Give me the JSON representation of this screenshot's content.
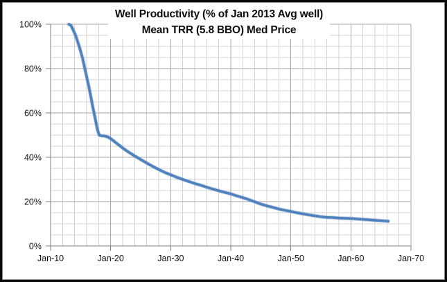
{
  "chart": {
    "title_line1": "Well Productivity (% of Jan 2013 Avg well)",
    "title_line2": "Mean TRR (5.8 BBO) Med Price"
  },
  "chart_data": {
    "type": "line",
    "title": "Well Productivity (% of Jan 2013 Avg well) Mean TRR (5.8 BBO) Med Price",
    "xlabel": "",
    "ylabel": "",
    "x_range": [
      2010,
      2070
    ],
    "ylim": [
      0,
      100
    ],
    "x_tick_values": [
      2010,
      2020,
      2030,
      2040,
      2050,
      2060,
      2070
    ],
    "x_tick_labels": [
      "Jan-10",
      "Jan-20",
      "Jan-30",
      "Jan-40",
      "Jan-50",
      "Jan-60",
      "Jan-70"
    ],
    "y_tick_values": [
      0,
      20,
      40,
      60,
      80,
      100
    ],
    "y_tick_labels": [
      "0%",
      "20%",
      "40%",
      "60%",
      "80%",
      "100%"
    ],
    "x_minor_step_years": 2,
    "y_minor_step_pct": 5,
    "grid": "major and minor gridlines on both axes",
    "legend": "none",
    "colors": {
      "line": "#4F81BD",
      "minor_grid": "#d2d2d2",
      "major_grid": "#a6a6a6",
      "axis": "#808080",
      "border": "#0a0a0a",
      "background": "#ffffff"
    },
    "series": [
      {
        "name": "Well productivity, % of Jan 2013 average well",
        "points": [
          [
            2013.05,
            100
          ],
          [
            2013.4,
            99.4
          ],
          [
            2013.8,
            97.2
          ],
          [
            2014.15,
            95.0
          ],
          [
            2014.77,
            90.0
          ],
          [
            2015.3,
            85.0
          ],
          [
            2015.7,
            80.0
          ],
          [
            2016.4,
            71.5
          ],
          [
            2017.0,
            63.0
          ],
          [
            2017.5,
            56.5
          ],
          [
            2017.8,
            52.5
          ],
          [
            2018.1,
            50.0
          ],
          [
            2018.5,
            49.7
          ],
          [
            2019.0,
            49.6
          ],
          [
            2019.5,
            49.2
          ],
          [
            2020.0,
            48.4
          ],
          [
            2021.0,
            46.3
          ],
          [
            2022.0,
            44.2
          ],
          [
            2023.0,
            42.3
          ],
          [
            2024.0,
            40.6
          ],
          [
            2025.0,
            39.0
          ],
          [
            2026.0,
            37.4
          ],
          [
            2027.0,
            35.9
          ],
          [
            2028.0,
            34.5
          ],
          [
            2029.0,
            33.2
          ],
          [
            2030.0,
            32.1
          ],
          [
            2031.0,
            31.0
          ],
          [
            2032.0,
            30.0
          ],
          [
            2033.0,
            29.1
          ],
          [
            2034.0,
            28.2
          ],
          [
            2035.0,
            27.4
          ],
          [
            2036.0,
            26.5
          ],
          [
            2037.0,
            25.7
          ],
          [
            2038.0,
            24.9
          ],
          [
            2039.0,
            24.2
          ],
          [
            2040.0,
            23.5
          ],
          [
            2041.0,
            22.6
          ],
          [
            2042.0,
            21.8
          ],
          [
            2043.0,
            20.9
          ],
          [
            2044.0,
            19.9
          ],
          [
            2045.0,
            18.9
          ],
          [
            2046.0,
            18.1
          ],
          [
            2047.0,
            17.4
          ],
          [
            2048.0,
            16.7
          ],
          [
            2049.0,
            16.1
          ],
          [
            2050.0,
            15.6
          ],
          [
            2051.0,
            15.0
          ],
          [
            2052.0,
            14.5
          ],
          [
            2053.0,
            14.0
          ],
          [
            2054.0,
            13.6
          ],
          [
            2055.0,
            13.2
          ],
          [
            2056.0,
            12.9
          ],
          [
            2057.0,
            12.8
          ],
          [
            2058.0,
            12.6
          ],
          [
            2059.0,
            12.5
          ],
          [
            2060.0,
            12.4
          ],
          [
            2061.0,
            12.2
          ],
          [
            2062.0,
            12.0
          ],
          [
            2063.0,
            11.8
          ],
          [
            2064.0,
            11.6
          ],
          [
            2065.0,
            11.4
          ],
          [
            2066.2,
            11.2
          ]
        ]
      }
    ]
  }
}
